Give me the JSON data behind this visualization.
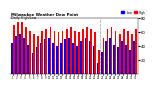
{
  "title": "Milwaukee Weather Dew Point",
  "subtitle": "Daily High/Low",
  "high_color": "#ff0000",
  "low_color": "#0000ff",
  "background_color": "#ffffff",
  "grid_color": "#cccccc",
  "ylim": [
    0,
    80
  ],
  "yticks": [
    20,
    40,
    60,
    80
  ],
  "days": [
    1,
    2,
    3,
    4,
    5,
    6,
    7,
    8,
    9,
    10,
    11,
    12,
    13,
    14,
    15,
    16,
    17,
    18,
    19,
    20,
    21,
    22,
    23,
    24,
    25,
    26,
    27,
    28,
    29,
    30,
    31
  ],
  "highs": [
    70,
    75,
    75,
    68,
    62,
    58,
    55,
    62,
    65,
    68,
    62,
    60,
    62,
    65,
    68,
    62,
    60,
    65,
    68,
    65,
    60,
    35,
    52,
    65,
    68,
    62,
    58,
    65,
    62,
    58,
    65
  ],
  "lows": [
    45,
    55,
    58,
    52,
    42,
    30,
    38,
    45,
    50,
    52,
    45,
    40,
    45,
    50,
    52,
    45,
    40,
    48,
    52,
    48,
    40,
    15,
    32,
    48,
    52,
    42,
    38,
    48,
    42,
    35,
    48
  ],
  "vline_pos": 21.5,
  "legend_labels": [
    "Low",
    "High"
  ]
}
